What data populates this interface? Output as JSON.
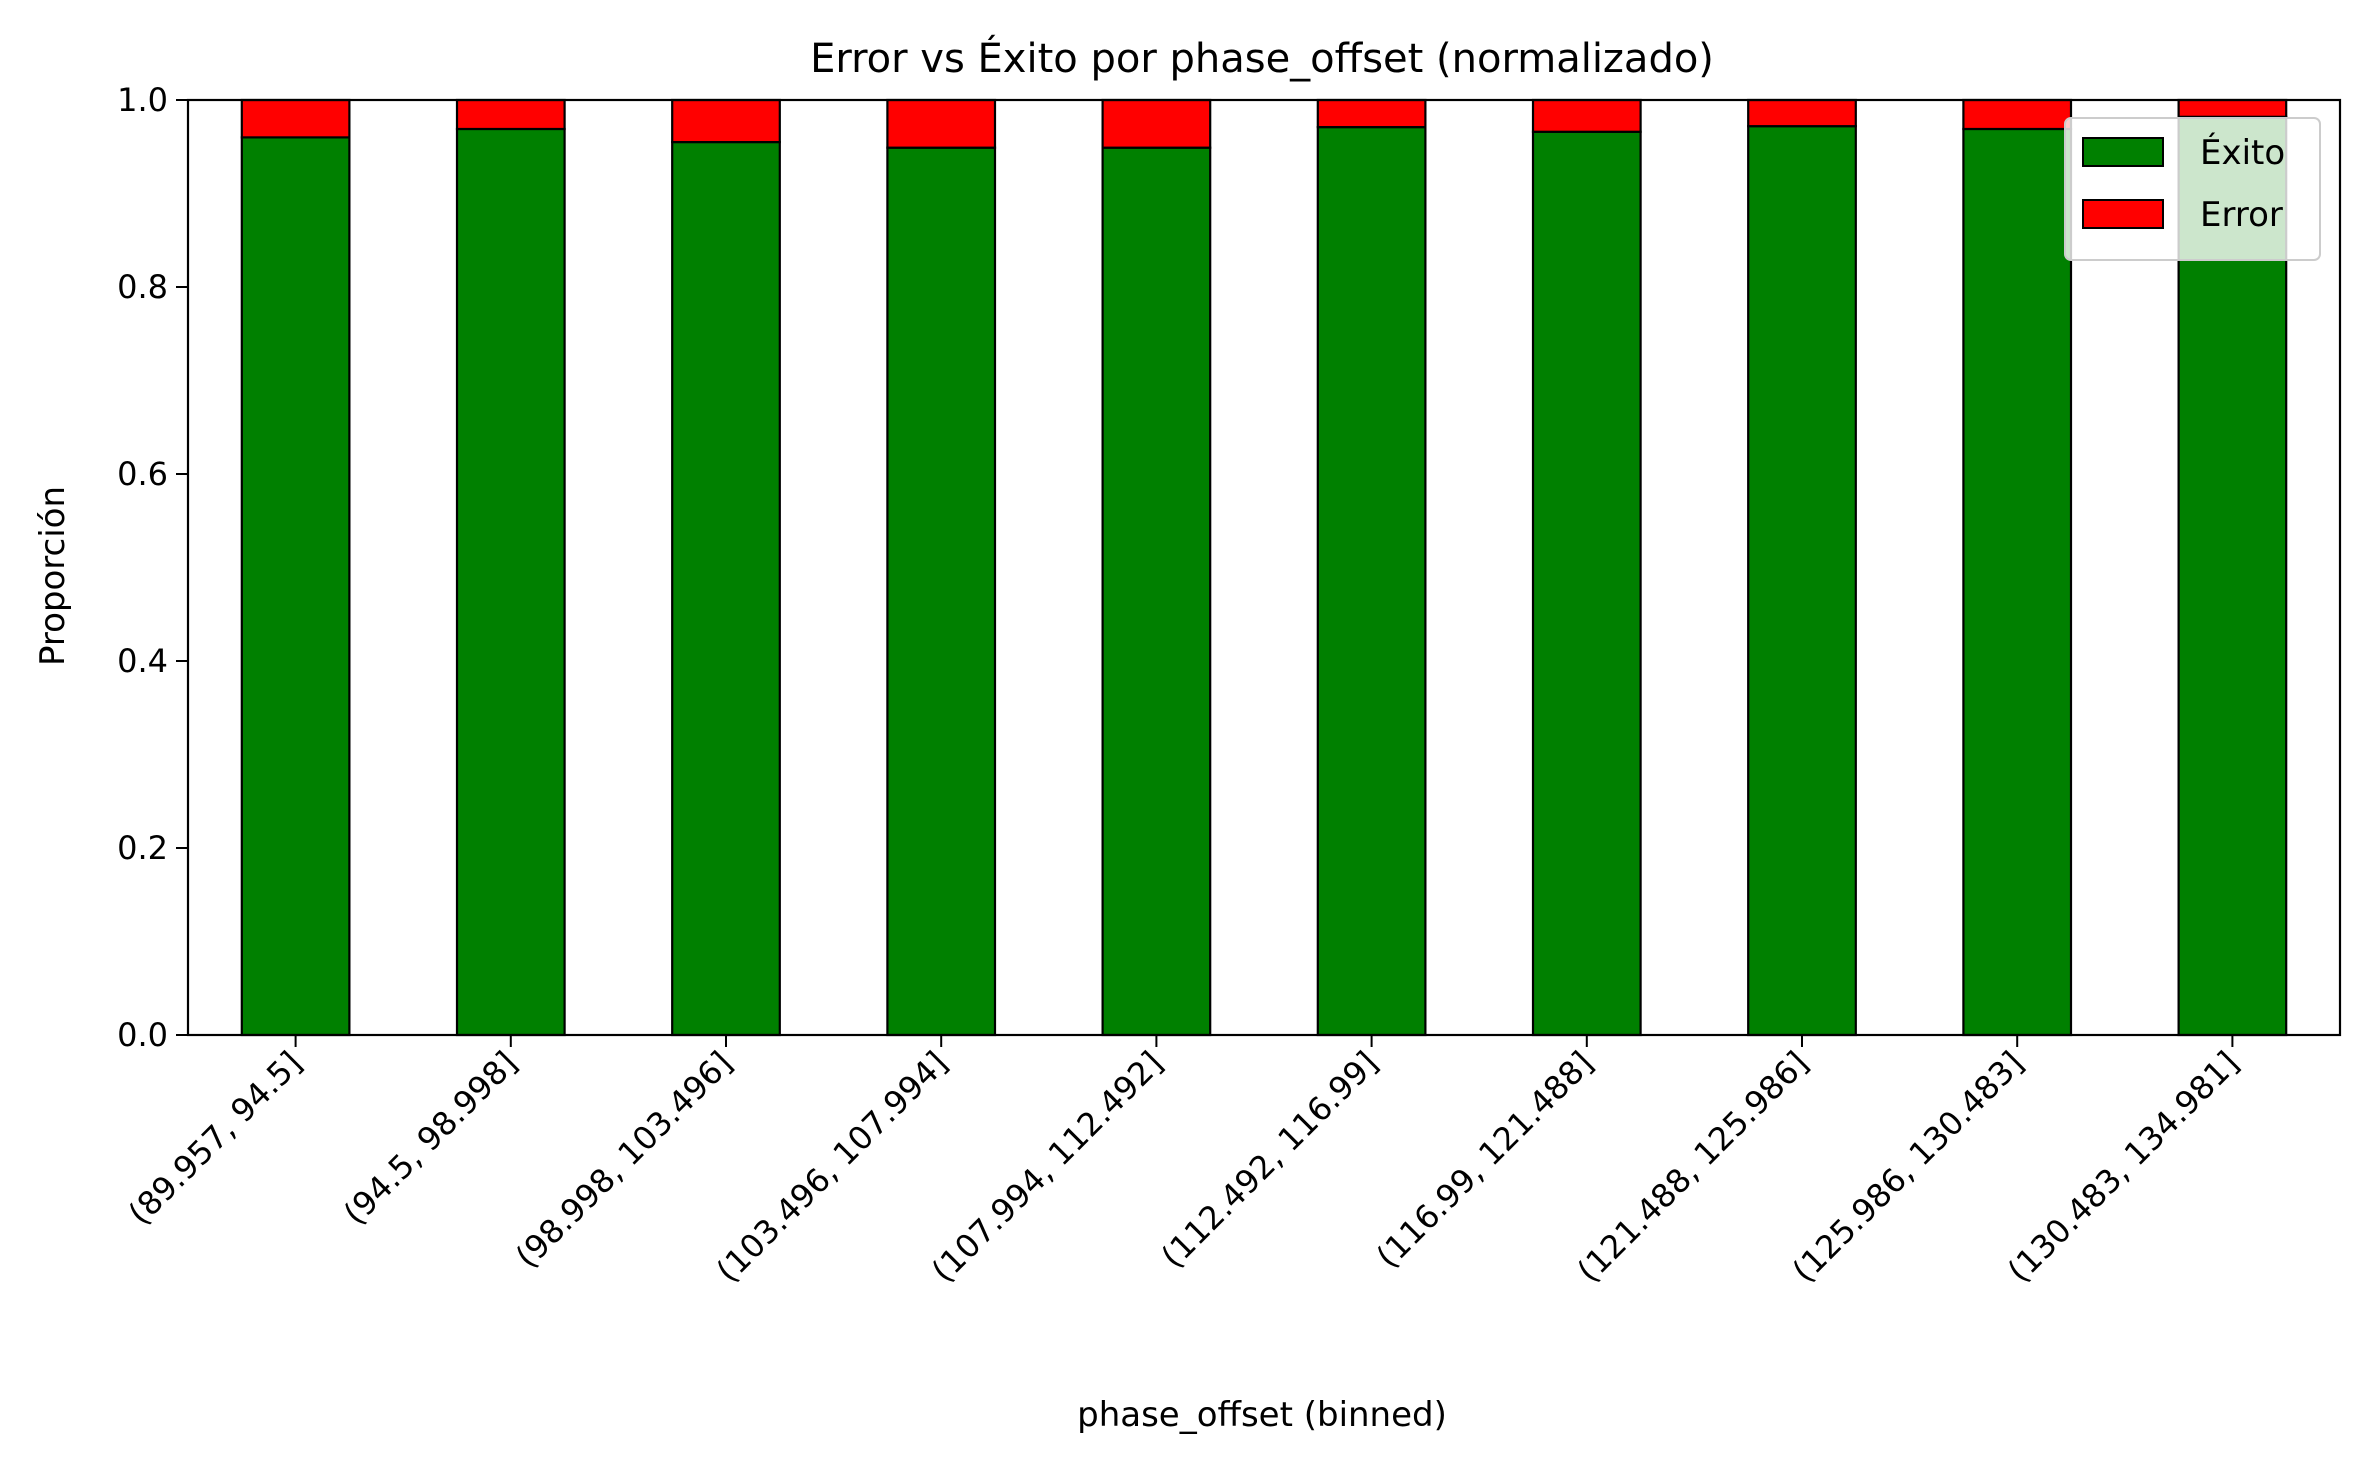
{
  "chart_data": {
    "type": "bar",
    "stacked": true,
    "title": "Error vs Éxito por phase_offset (normalizado)",
    "xlabel": "phase_offset (binned)",
    "ylabel": "Proporción",
    "ylim": [
      0.0,
      1.0
    ],
    "yticks": [
      "0.0",
      "0.2",
      "0.4",
      "0.6",
      "0.8",
      "1.0"
    ],
    "grid": false,
    "legend_position": "top-right",
    "categories": [
      "(89.957, 94.5]",
      "(94.5, 98.998]",
      "(98.998, 103.496]",
      "(103.496, 107.994]",
      "(107.994, 112.492]",
      "(112.492, 116.99]",
      "(116.99, 121.488]",
      "(121.488, 125.986]",
      "(125.986, 130.483]",
      "(130.483, 134.981]"
    ],
    "series": [
      {
        "name": "Éxito",
        "color": "#008000",
        "values": [
          0.96,
          0.969,
          0.955,
          0.949,
          0.949,
          0.971,
          0.966,
          0.972,
          0.969,
          0.982
        ]
      },
      {
        "name": "Error",
        "color": "#ff0000",
        "values": [
          0.04,
          0.031,
          0.045,
          0.051,
          0.051,
          0.029,
          0.034,
          0.028,
          0.031,
          0.018
        ]
      }
    ]
  }
}
